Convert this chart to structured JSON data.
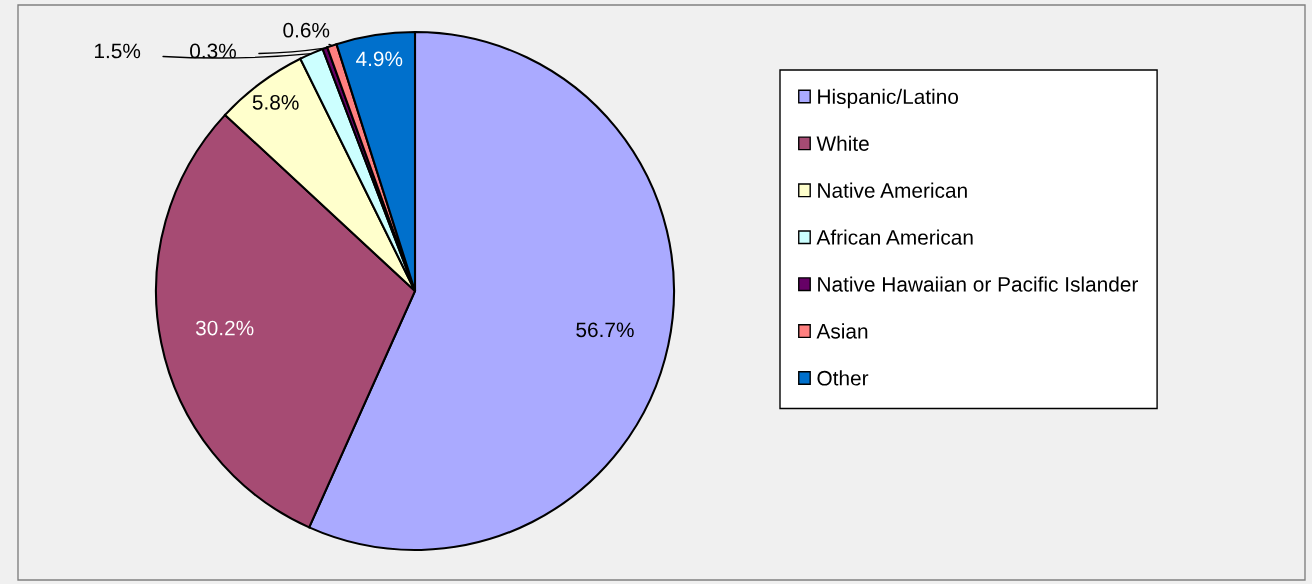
{
  "chart_data": {
    "type": "pie",
    "categories": [
      "Hispanic/Latino",
      "White",
      "Native American",
      "African American",
      "Native Hawaiian or Pacific Islander",
      "Asian",
      "Other"
    ],
    "values": [
      56.7,
      30.2,
      5.8,
      1.5,
      0.3,
      0.6,
      4.9
    ],
    "colors": [
      "#aaaaff",
      "#a64b73",
      "#ffffcc",
      "#ccffff",
      "#660066",
      "#ff8080",
      "#0070cc"
    ],
    "value_labels": [
      "56.7%",
      "30.2%",
      "5.8%",
      "1.5%",
      "0.3%",
      "0.6%",
      "4.9%"
    ],
    "legend": "right"
  }
}
